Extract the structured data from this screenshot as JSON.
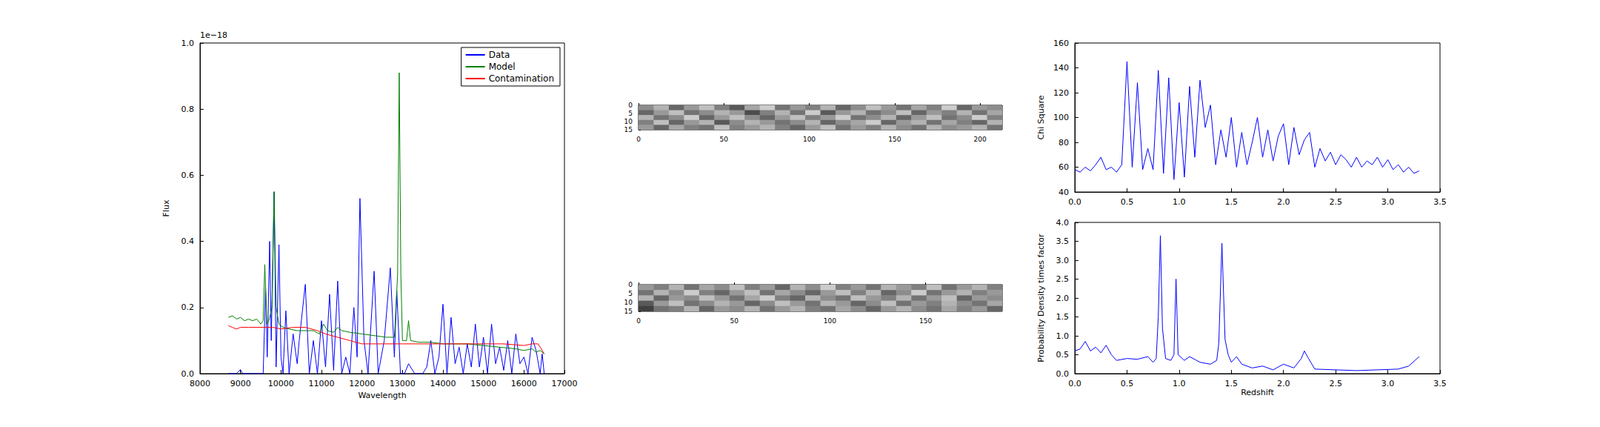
{
  "chart_data": [
    {
      "type": "line",
      "xlabel": "Wavelength",
      "ylabel": "Flux",
      "annotations": [
        "1e−18"
      ],
      "xlim": [
        8000,
        17000
      ],
      "xticks": [
        8000,
        9000,
        10000,
        11000,
        12000,
        13000,
        14000,
        15000,
        16000,
        17000
      ],
      "ylim": [
        0,
        1
      ],
      "yticks": [
        {
          "value": 0,
          "label": "0.0"
        },
        0.2,
        0.4,
        0.6,
        0.8,
        {
          "value": 1,
          "label": "1.0"
        }
      ],
      "legend": "upper right",
      "series": [
        {
          "name": "Data",
          "color": "#0000ff",
          "x": [
            8700,
            8900,
            9000,
            9050,
            9500,
            9560,
            9620,
            9660,
            9720,
            9760,
            9830,
            9880,
            9950,
            10000,
            10050,
            10120,
            10200,
            10300,
            10400,
            10450,
            10600,
            10700,
            10800,
            10900,
            11000,
            11100,
            11200,
            11300,
            11400,
            11500,
            11600,
            11700,
            11800,
            11880,
            11950,
            12050,
            12150,
            12300,
            12400,
            12550,
            12700,
            12800,
            12860,
            12950,
            13050,
            13150,
            13300,
            13500,
            13600,
            13700,
            13800,
            13900,
            14000,
            14100,
            14200,
            14300,
            14400,
            14500,
            14600,
            14700,
            14800,
            14900,
            15000,
            15100,
            15200,
            15300,
            15400,
            15500,
            15600,
            15700,
            15800,
            15900,
            16000,
            16100,
            16200,
            16300,
            16400,
            16450,
            16500
          ],
          "values": [
            0,
            0,
            0.012,
            0,
            0,
            0,
            0.26,
            0.05,
            0.4,
            0.1,
            0.55,
            0.02,
            0.39,
            0.05,
            0,
            0.19,
            0,
            0.12,
            0.03,
            0.1,
            0.27,
            0,
            0.1,
            0,
            0.16,
            0.02,
            0.24,
            0.01,
            0.28,
            0,
            0.05,
            0,
            0.2,
            0.05,
            0.53,
            0.1,
            0,
            0.31,
            0,
            0.1,
            0.32,
            0.05,
            0.25,
            0,
            0,
            0.03,
            0,
            0,
            0.02,
            0.1,
            0,
            0.05,
            0.21,
            0,
            0.17,
            0.03,
            0.08,
            0,
            0.09,
            0.02,
            0.15,
            0.02,
            0.11,
            0,
            0.15,
            0.03,
            0.08,
            0.01,
            0.1,
            0,
            0.12,
            0.03,
            0.05,
            0,
            0.11,
            0.07,
            0,
            0.06,
            0
          ]
        },
        {
          "name": "Model",
          "color": "#008000",
          "x": [
            8700,
            8800,
            8900,
            9000,
            9100,
            9200,
            9300,
            9400,
            9500,
            9560,
            9600,
            9650,
            9700,
            9780,
            9830,
            9880,
            9950,
            10050,
            10200,
            10400,
            10600,
            10800,
            10950,
            11050,
            11150,
            11300,
            11400,
            11500,
            11700,
            12000,
            12300,
            12600,
            12800,
            12880,
            12920,
            12960,
            13000,
            13100,
            13150,
            13200,
            13400,
            13700,
            14000,
            14300,
            14600,
            15000,
            15400,
            15800,
            16000,
            16200,
            16300,
            16400,
            16500
          ],
          "values": [
            0.17,
            0.175,
            0.165,
            0.17,
            0.16,
            0.165,
            0.16,
            0.165,
            0.15,
            0.16,
            0.33,
            0.15,
            0.16,
            0.2,
            0.55,
            0.2,
            0.15,
            0.14,
            0.135,
            0.13,
            0.13,
            0.13,
            0.12,
            0.15,
            0.13,
            0.125,
            0.14,
            0.13,
            0.125,
            0.12,
            0.115,
            0.11,
            0.11,
            0.3,
            0.91,
            0.3,
            0.1,
            0.1,
            0.16,
            0.1,
            0.095,
            0.095,
            0.09,
            0.09,
            0.09,
            0.085,
            0.08,
            0.075,
            0.07,
            0.075,
            0.065,
            0.07,
            0.06
          ]
        },
        {
          "name": "Contamination",
          "color": "#ff0000",
          "x": [
            8700,
            8800,
            8900,
            9000,
            9200,
            9500,
            9800,
            10000,
            10300,
            10600,
            10900,
            11100,
            11400,
            11700,
            12000,
            12500,
            13000,
            13500,
            14000,
            14500,
            15000,
            15500,
            16000,
            16200,
            16350,
            16500
          ],
          "values": [
            0.145,
            0.14,
            0.135,
            0.14,
            0.14,
            0.14,
            0.14,
            0.135,
            0.14,
            0.14,
            0.13,
            0.12,
            0.11,
            0.1,
            0.09,
            0.09,
            0.09,
            0.09,
            0.09,
            0.09,
            0.09,
            0.09,
            0.085,
            0.09,
            0.09,
            0.06
          ]
        }
      ]
    },
    {
      "type": "image",
      "xlim": [
        0,
        213
      ],
      "xticks": [
        0,
        50,
        100,
        150,
        200
      ],
      "ylim": [
        0,
        15
      ],
      "yticks": [
        0,
        5,
        10,
        15
      ],
      "cells": [
        [
          0.55,
          0.7,
          0.4,
          0.6,
          0.75,
          0.5,
          0.35,
          0.65,
          0.8,
          0.45,
          0.6,
          0.5,
          0.7,
          0.4,
          0.55,
          0.75,
          0.6,
          0.45,
          0.65,
          0.5,
          0.8,
          0.4,
          0.6,
          0.55
        ],
        [
          0.4,
          0.6,
          0.75,
          0.45,
          0.55,
          0.7,
          0.6,
          0.3,
          0.5,
          0.7,
          0.45,
          0.8,
          0.35,
          0.6,
          0.7,
          0.45,
          0.55,
          0.75,
          0.4,
          0.6,
          0.5,
          0.7,
          0.45,
          0.65
        ],
        [
          0.7,
          0.45,
          0.55,
          0.8,
          0.4,
          0.6,
          0.75,
          0.55,
          0.4,
          0.6,
          0.75,
          0.5,
          0.6,
          0.8,
          0.45,
          0.55,
          0.7,
          0.4,
          0.6,
          0.75,
          0.45,
          0.55,
          0.8,
          0.5
        ],
        [
          0.5,
          0.75,
          0.4,
          0.6,
          0.7,
          0.35,
          0.55,
          0.7,
          0.6,
          0.45,
          0.55,
          0.7,
          0.4,
          0.55,
          0.65,
          0.8,
          0.4,
          0.6,
          0.7,
          0.45,
          0.65,
          0.5,
          0.4,
          0.7
        ],
        [
          0.6,
          0.4,
          0.65,
          0.5,
          0.45,
          0.75,
          0.5,
          0.6,
          0.7,
          0.5,
          0.4,
          0.6,
          0.75,
          0.45,
          0.6,
          0.5,
          0.7,
          0.55,
          0.45,
          0.7,
          0.55,
          0.6,
          0.7,
          0.45
        ]
      ]
    },
    {
      "type": "image",
      "xlim": [
        0,
        190
      ],
      "xticks": [
        0,
        50,
        100,
        150
      ],
      "ylim": [
        0,
        15
      ],
      "yticks": [
        0,
        5,
        10,
        15
      ],
      "cells": [
        [
          0.6,
          0.5,
          0.7,
          0.45,
          0.65,
          0.55,
          0.75,
          0.5,
          0.6,
          0.4,
          0.7,
          0.55,
          0.8,
          0.5,
          0.6,
          0.45,
          0.7,
          0.6,
          0.5,
          0.75,
          0.45,
          0.6,
          0.7,
          0.5
        ],
        [
          0.45,
          0.7,
          0.55,
          0.8,
          0.5,
          0.4,
          0.6,
          0.75,
          0.45,
          0.65,
          0.55,
          0.4,
          0.6,
          0.75,
          0.5,
          0.7,
          0.4,
          0.55,
          0.8,
          0.45,
          0.6,
          0.7,
          0.5,
          0.6
        ],
        [
          0.7,
          0.4,
          0.6,
          0.55,
          0.75,
          0.6,
          0.45,
          0.65,
          0.8,
          0.5,
          0.4,
          0.7,
          0.55,
          0.45,
          0.75,
          0.6,
          0.5,
          0.7,
          0.45,
          0.6,
          0.75,
          0.4,
          0.6,
          0.55
        ],
        [
          0.35,
          0.6,
          0.75,
          0.45,
          0.55,
          0.7,
          0.6,
          0.4,
          0.55,
          0.75,
          0.6,
          0.45,
          0.7,
          0.6,
          0.4,
          0.55,
          0.75,
          0.45,
          0.6,
          0.5,
          0.7,
          0.55,
          0.45,
          0.65
        ],
        [
          0.25,
          0.45,
          0.5,
          0.7,
          0.4,
          0.6,
          0.55,
          0.7,
          0.45,
          0.6,
          0.7,
          0.5,
          0.45,
          0.65,
          0.55,
          0.4,
          0.6,
          0.7,
          0.55,
          0.45,
          0.65,
          0.5,
          0.6,
          0.4
        ]
      ]
    },
    {
      "type": "line",
      "ylabel": "Chi Square",
      "xlim": [
        0,
        3.5
      ],
      "xticks": [
        {
          "value": 0,
          "label": "0.0"
        },
        0.5,
        {
          "value": 1,
          "label": "1.0"
        },
        1.5,
        {
          "value": 2,
          "label": "2.0"
        },
        2.5,
        {
          "value": 3,
          "label": "3.0"
        },
        3.5
      ],
      "ylim": [
        40,
        160
      ],
      "yticks": [
        40,
        60,
        80,
        100,
        120,
        140,
        160
      ],
      "series": [
        {
          "color": "#0000ff",
          "x": [
            0,
            0.05,
            0.1,
            0.15,
            0.2,
            0.25,
            0.3,
            0.35,
            0.4,
            0.45,
            0.5,
            0.55,
            0.6,
            0.65,
            0.7,
            0.75,
            0.8,
            0.85,
            0.9,
            0.95,
            1.0,
            1.05,
            1.1,
            1.15,
            1.2,
            1.25,
            1.3,
            1.35,
            1.4,
            1.45,
            1.5,
            1.55,
            1.6,
            1.65,
            1.7,
            1.75,
            1.8,
            1.85,
            1.9,
            1.95,
            2.0,
            2.05,
            2.1,
            2.15,
            2.2,
            2.25,
            2.3,
            2.35,
            2.4,
            2.45,
            2.5,
            2.55,
            2.6,
            2.65,
            2.7,
            2.75,
            2.8,
            2.85,
            2.9,
            2.95,
            3.0,
            3.05,
            3.1,
            3.15,
            3.2,
            3.25,
            3.3
          ],
          "values": [
            58,
            56,
            60,
            57,
            62,
            68,
            58,
            60,
            56,
            62,
            145,
            60,
            128,
            58,
            75,
            58,
            138,
            55,
            132,
            50,
            112,
            52,
            125,
            68,
            130,
            92,
            110,
            62,
            90,
            68,
            100,
            60,
            88,
            62,
            80,
            100,
            68,
            90,
            65,
            85,
            95,
            62,
            92,
            70,
            82,
            88,
            60,
            75,
            65,
            72,
            62,
            70,
            66,
            60,
            68,
            60,
            65,
            62,
            68,
            60,
            66,
            58,
            62,
            56,
            60,
            55,
            57
          ]
        }
      ]
    },
    {
      "type": "line",
      "xlabel": "Redshift",
      "ylabel": "Probability Density times factor",
      "xlim": [
        0,
        3.5
      ],
      "xticks": [
        {
          "value": 0,
          "label": "0.0"
        },
        0.5,
        {
          "value": 1,
          "label": "1.0"
        },
        1.5,
        {
          "value": 2,
          "label": "2.0"
        },
        2.5,
        {
          "value": 3,
          "label": "3.0"
        },
        3.5
      ],
      "ylim": [
        0,
        4
      ],
      "yticks": [
        {
          "value": 0,
          "label": "0.0"
        },
        0.5,
        {
          "value": 1,
          "label": "1.0"
        },
        1.5,
        {
          "value": 2,
          "label": "2.0"
        },
        2.5,
        {
          "value": 3,
          "label": "3.0"
        },
        3.5,
        {
          "value": 4,
          "label": "4.0"
        }
      ],
      "series": [
        {
          "color": "#0000ff",
          "x": [
            0,
            0.05,
            0.1,
            0.15,
            0.2,
            0.25,
            0.3,
            0.35,
            0.4,
            0.5,
            0.6,
            0.7,
            0.75,
            0.78,
            0.8,
            0.82,
            0.84,
            0.87,
            0.92,
            0.95,
            0.97,
            0.99,
            1.05,
            1.1,
            1.2,
            1.3,
            1.36,
            1.38,
            1.41,
            1.44,
            1.47,
            1.5,
            1.55,
            1.6,
            1.7,
            1.8,
            1.9,
            2.0,
            2.1,
            2.17,
            2.2,
            2.24,
            2.3,
            2.5,
            2.7,
            2.9,
            3.1,
            3.2,
            3.3
          ],
          "values": [
            0.6,
            0.65,
            0.85,
            0.6,
            0.7,
            0.55,
            0.75,
            0.5,
            0.35,
            0.4,
            0.38,
            0.45,
            0.3,
            0.4,
            1.5,
            3.65,
            1.2,
            0.4,
            0.35,
            0.5,
            2.5,
            0.5,
            0.35,
            0.45,
            0.3,
            0.25,
            0.35,
            0.8,
            3.45,
            0.9,
            0.5,
            0.3,
            0.45,
            0.25,
            0.15,
            0.2,
            0.1,
            0.25,
            0.15,
            0.4,
            0.6,
            0.4,
            0.12,
            0.1,
            0.08,
            0.1,
            0.12,
            0.2,
            0.45
          ]
        }
      ]
    }
  ]
}
